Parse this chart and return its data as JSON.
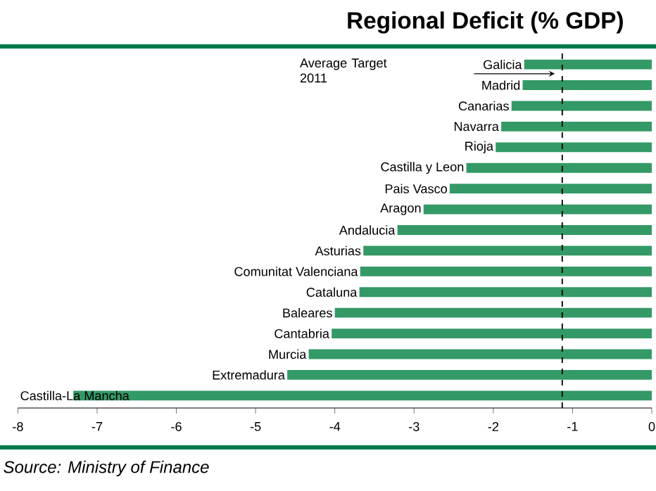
{
  "chart_data": {
    "type": "bar",
    "orientation": "horizontal",
    "title": "Regional Deficit (% GDP)",
    "categories": [
      "Galicia",
      "Madrid",
      "Canarias",
      "Navarra",
      "Rioja",
      "Castilla y Leon",
      "Pais Vasco",
      "Aragon",
      "Andalucia",
      "Asturias",
      "Comunitat Valenciana",
      "Cataluna",
      "Baleares",
      "Cantabria",
      "Murcia",
      "Extremadura",
      "Castilla-La Mancha"
    ],
    "values": [
      -1.61,
      -1.63,
      -1.77,
      -1.9,
      -1.97,
      -2.34,
      -2.55,
      -2.88,
      -3.21,
      -3.64,
      -3.68,
      -3.69,
      -4.0,
      -4.04,
      -4.33,
      -4.6,
      -7.3
    ],
    "color": "#339966",
    "xlim": [
      -8,
      0
    ],
    "xticks": [
      -8,
      -7,
      -6,
      -5,
      -4,
      -3,
      -2,
      -1,
      0
    ],
    "ref_lines": [
      {
        "axis": "x",
        "value": -1.13,
        "label": "Average Target 2011",
        "line_style": "dashed",
        "color": "#000000"
      }
    ],
    "annotations": [
      "*Source: Ministry of Finance*"
    ]
  }
}
